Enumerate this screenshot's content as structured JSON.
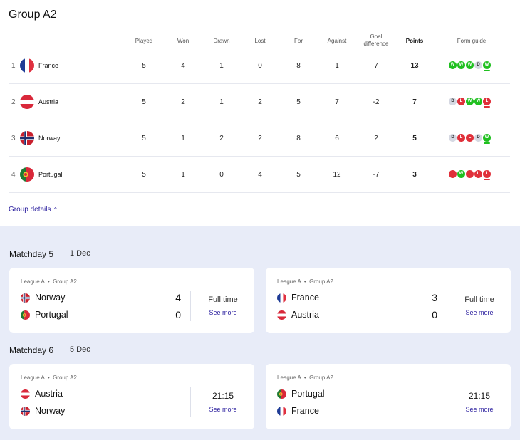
{
  "group": {
    "title": "Group A2",
    "columns": {
      "played": "Played",
      "won": "Won",
      "drawn": "Drawn",
      "lost": "Lost",
      "for": "For",
      "against": "Against",
      "goal_difference": "Goal difference",
      "points": "Points",
      "form": "Form guide"
    },
    "rows": [
      {
        "pos": "1",
        "team": "France",
        "flag": "france-flag-icon",
        "played": "5",
        "won": "4",
        "drawn": "1",
        "lost": "0",
        "for": "8",
        "against": "1",
        "gd": "7",
        "points": "13",
        "form": [
          "W",
          "W",
          "W",
          "D",
          "W"
        ]
      },
      {
        "pos": "2",
        "team": "Austria",
        "flag": "austria-flag-icon",
        "played": "5",
        "won": "2",
        "drawn": "1",
        "lost": "2",
        "for": "5",
        "against": "7",
        "gd": "-2",
        "points": "7",
        "form": [
          "D",
          "L",
          "W",
          "W",
          "L"
        ]
      },
      {
        "pos": "3",
        "team": "Norway",
        "flag": "norway-flag-icon",
        "played": "5",
        "won": "1",
        "drawn": "2",
        "lost": "2",
        "for": "8",
        "against": "6",
        "gd": "2",
        "points": "5",
        "form": [
          "D",
          "L",
          "L",
          "D",
          "W"
        ]
      },
      {
        "pos": "4",
        "team": "Portugal",
        "flag": "portugal-flag-icon",
        "played": "5",
        "won": "1",
        "drawn": "0",
        "lost": "4",
        "for": "5",
        "against": "12",
        "gd": "-7",
        "points": "3",
        "form": [
          "L",
          "W",
          "L",
          "L",
          "L"
        ]
      }
    ],
    "details_label": "Group details",
    "colors": {
      "win": "#20c020",
      "loss": "#e0303a",
      "draw": "#d5d8e2",
      "link": "#2a1e9e",
      "matchday_bg": "#e8ecf8"
    }
  },
  "matchdays": [
    {
      "title": "Matchday 5",
      "date": "1 Dec",
      "matches": [
        {
          "league": "League A",
          "group": "Group A2",
          "home": "Norway",
          "away": "Portugal",
          "home_score": "4",
          "away_score": "0",
          "status": "Full time",
          "link": "See more"
        },
        {
          "league": "League A",
          "group": "Group A2",
          "home": "France",
          "away": "Austria",
          "home_score": "3",
          "away_score": "0",
          "status": "Full time",
          "link": "See more"
        }
      ]
    },
    {
      "title": "Matchday 6",
      "date": "5 Dec",
      "matches": [
        {
          "league": "League A",
          "group": "Group A2",
          "home": "Austria",
          "away": "Norway",
          "kickoff": "21:15",
          "link": "See more"
        },
        {
          "league": "League A",
          "group": "Group A2",
          "home": "Portugal",
          "away": "France",
          "kickoff": "21:15",
          "link": "See more"
        }
      ]
    }
  ]
}
